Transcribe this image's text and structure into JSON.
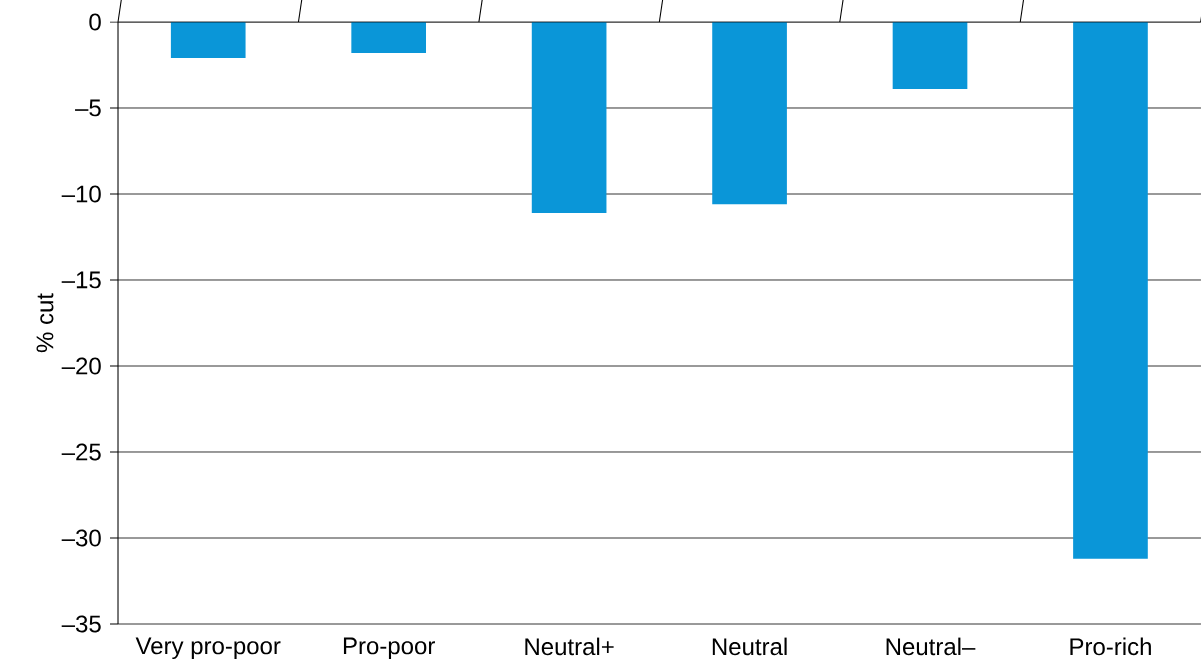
{
  "chart_data": {
    "type": "bar",
    "ylabel": "% cut",
    "categories": [
      "Very pro-poor",
      "Pro-poor",
      "Neutral+",
      "Neutral",
      "Neutral–",
      "Pro-rich"
    ],
    "values": [
      -2.1,
      -1.8,
      -11.1,
      -10.6,
      -3.9,
      -31.2
    ],
    "color": "#0a96d8",
    "ylim": [
      -35,
      0
    ],
    "yticks": [
      {
        "value": -35,
        "label": "–35"
      },
      {
        "value": -30,
        "label": "–30"
      },
      {
        "value": -25,
        "label": "–25"
      },
      {
        "value": -20,
        "label": "–20"
      },
      {
        "value": -15,
        "label": "–15"
      },
      {
        "value": -10,
        "label": "–10"
      },
      {
        "value": -5,
        "label": "–5"
      },
      0
    ],
    "grid": "y"
  }
}
